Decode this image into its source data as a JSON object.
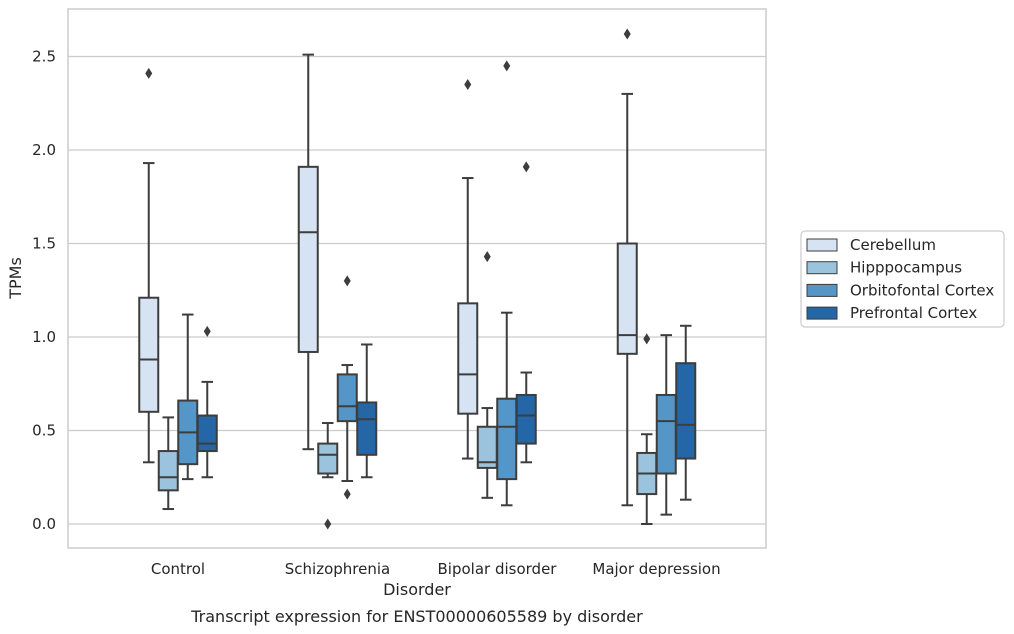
{
  "chart_data": {
    "type": "box",
    "title": "",
    "caption": "Transcript expression for ENST00000605589 by disorder",
    "xlabel": "Disorder",
    "ylabel": "TPMs",
    "ylim": [
      -0.12,
      2.76
    ],
    "yticks": [
      "0.0",
      "0.5",
      "1.0",
      "1.5",
      "2.0",
      "2.5"
    ],
    "grid": "horizontal",
    "legend_position": "right",
    "categories": [
      "Control",
      "Schizophrenia",
      "Bipolar disorder",
      "Major depression"
    ],
    "series": [
      {
        "name": "Cerebellum",
        "color": "#d5e3f2",
        "boxes": [
          {
            "whisker_low": 0.33,
            "q1": 0.6,
            "median": 0.88,
            "q3": 1.21,
            "whisker_high": 1.93,
            "outliers": [
              2.41
            ]
          },
          {
            "whisker_low": 0.4,
            "q1": 0.92,
            "median": 1.56,
            "q3": 1.91,
            "whisker_high": 2.51,
            "outliers": []
          },
          {
            "whisker_low": 0.35,
            "q1": 0.59,
            "median": 0.8,
            "q3": 1.18,
            "whisker_high": 1.85,
            "outliers": [
              2.35
            ]
          },
          {
            "whisker_low": 0.1,
            "q1": 0.91,
            "median": 1.01,
            "q3": 1.5,
            "whisker_high": 2.3,
            "outliers": [
              2.62
            ]
          }
        ]
      },
      {
        "name": "Hipppocampus",
        "color": "#9cc3de",
        "boxes": [
          {
            "whisker_low": 0.08,
            "q1": 0.18,
            "median": 0.25,
            "q3": 0.39,
            "whisker_high": 0.57,
            "outliers": []
          },
          {
            "whisker_low": 0.25,
            "q1": 0.27,
            "median": 0.37,
            "q3": 0.43,
            "whisker_high": 0.54,
            "outliers": [
              0.0
            ]
          },
          {
            "whisker_low": 0.14,
            "q1": 0.3,
            "median": 0.33,
            "q3": 0.52,
            "whisker_high": 0.62,
            "outliers": [
              1.43
            ]
          },
          {
            "whisker_low": 0.0,
            "q1": 0.16,
            "median": 0.27,
            "q3": 0.38,
            "whisker_high": 0.48,
            "outliers": [
              0.99
            ]
          }
        ]
      },
      {
        "name": "Orbitofontal Cortex",
        "color": "#5396c7",
        "boxes": [
          {
            "whisker_low": 0.24,
            "q1": 0.32,
            "median": 0.49,
            "q3": 0.66,
            "whisker_high": 1.12,
            "outliers": []
          },
          {
            "whisker_low": 0.23,
            "q1": 0.55,
            "median": 0.63,
            "q3": 0.8,
            "whisker_high": 0.85,
            "outliers": [
              1.3,
              0.16
            ]
          },
          {
            "whisker_low": 0.1,
            "q1": 0.24,
            "median": 0.52,
            "q3": 0.67,
            "whisker_high": 1.13,
            "outliers": [
              2.45
            ]
          },
          {
            "whisker_low": 0.05,
            "q1": 0.27,
            "median": 0.55,
            "q3": 0.69,
            "whisker_high": 1.01,
            "outliers": []
          }
        ]
      },
      {
        "name": "Prefrontal Cortex",
        "color": "#2466a6",
        "boxes": [
          {
            "whisker_low": 0.25,
            "q1": 0.39,
            "median": 0.43,
            "q3": 0.58,
            "whisker_high": 0.76,
            "outliers": [
              1.03
            ]
          },
          {
            "whisker_low": 0.25,
            "q1": 0.37,
            "median": 0.56,
            "q3": 0.65,
            "whisker_high": 0.96,
            "outliers": []
          },
          {
            "whisker_low": 0.33,
            "q1": 0.43,
            "median": 0.58,
            "q3": 0.69,
            "whisker_high": 0.81,
            "outliers": [
              1.91
            ]
          },
          {
            "whisker_low": 0.13,
            "q1": 0.35,
            "median": 0.53,
            "q3": 0.86,
            "whisker_high": 1.06,
            "outliers": []
          }
        ]
      }
    ]
  }
}
